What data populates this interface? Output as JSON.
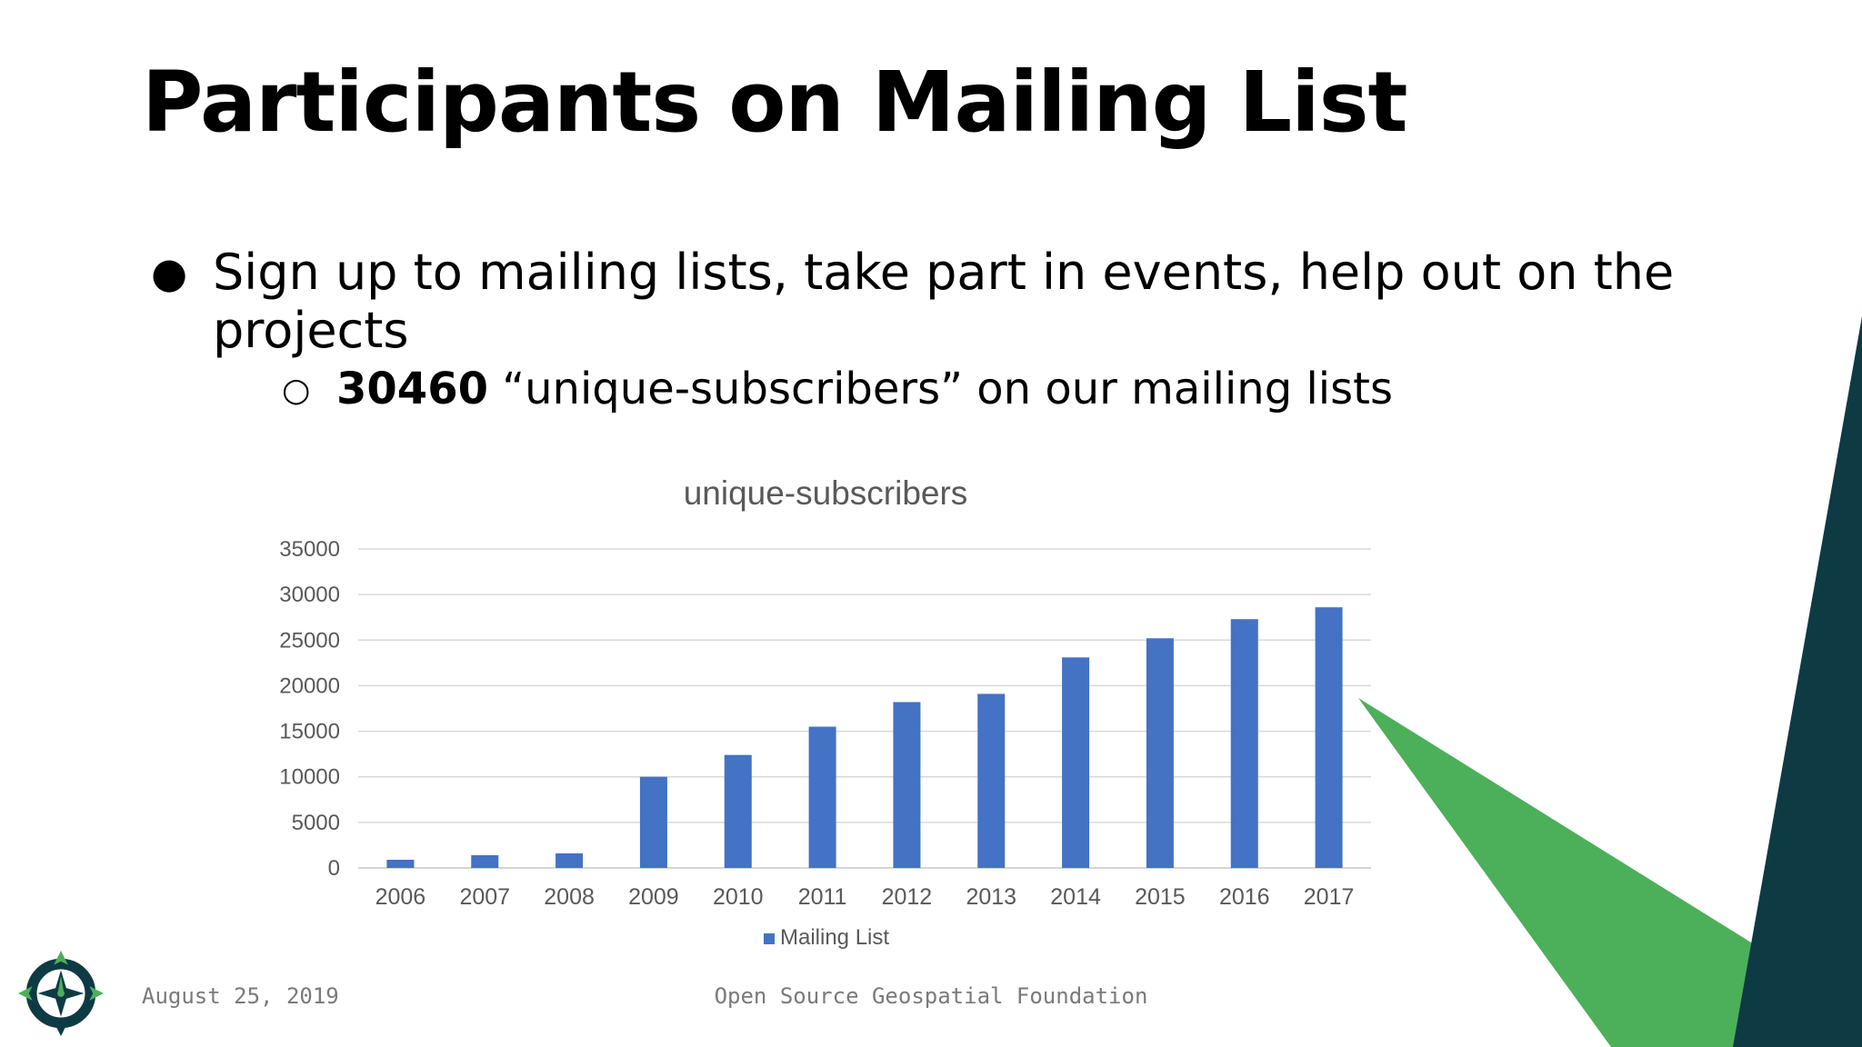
{
  "slide": {
    "title": "Participants on Mailing List",
    "bullet": "Sign up to mailing lists, take part in events, help out on the projects",
    "sub_bullet_bold": "30460",
    "sub_bullet_rest": " “unique-subscribers” on our mailing lists"
  },
  "footer": {
    "date": "August 25, 2019",
    "org": "Open Source Geospatial Foundation"
  },
  "colors": {
    "bar": "#4472c4",
    "dark_teal": "#0e3a44",
    "green": "#4caf5a",
    "title_text": "#000000",
    "footer_text": "#7a7a7a"
  },
  "icons": [
    "bullet-disc-icon",
    "bullet-circle-icon",
    "osgeo-compass-logo"
  ],
  "chart_data": {
    "type": "bar",
    "title": "unique-subscribers",
    "xlabel": "",
    "ylabel": "",
    "categories": [
      "2006",
      "2007",
      "2008",
      "2009",
      "2010",
      "2011",
      "2012",
      "2013",
      "2014",
      "2015",
      "2016",
      "2017"
    ],
    "series": [
      {
        "name": "Mailing List",
        "values": [
          900,
          1400,
          1600,
          10000,
          12400,
          15500,
          18200,
          19100,
          23100,
          25200,
          27300,
          28600
        ]
      }
    ],
    "ylim": [
      0,
      35000
    ],
    "yticks": [
      "0",
      "5000",
      "10000",
      "15000",
      "20000",
      "25000",
      "30000",
      "35000"
    ],
    "grid": true,
    "legend": "bottom"
  }
}
